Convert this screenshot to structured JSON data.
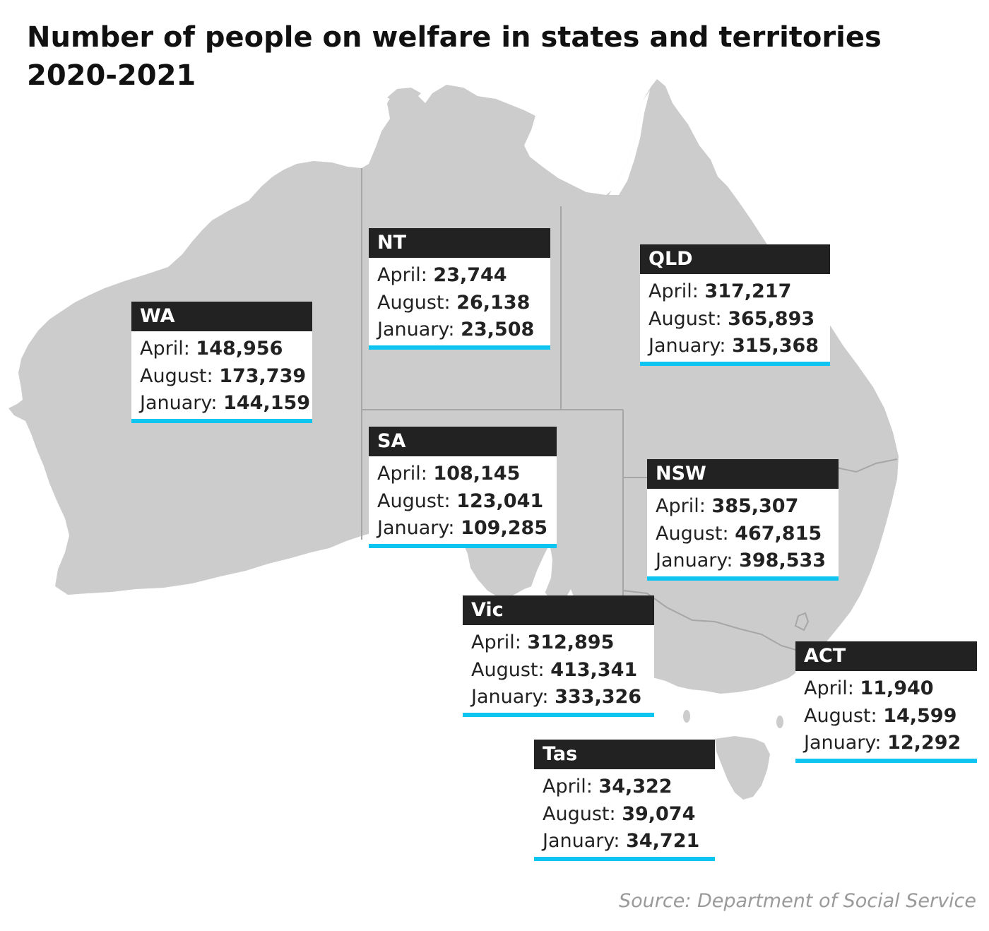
{
  "title_line1": "Number of people on welfare in states and territories",
  "title_line2": "2020-2021",
  "source": "Source: Department of Social Service",
  "colors": {
    "land": "#cccccc",
    "border": "#a6a6a6",
    "label_bg": "#222222",
    "accent": "#0ec5f2"
  },
  "regions": {
    "wa": {
      "name": "WA",
      "rows": [
        {
          "label": "April:",
          "value": "148,956"
        },
        {
          "label": "August:",
          "value": "173,739"
        },
        {
          "label": "January:",
          "value": "144,159"
        }
      ]
    },
    "nt": {
      "name": "NT",
      "rows": [
        {
          "label": "April:",
          "value": "23,744"
        },
        {
          "label": "August:",
          "value": "26,138"
        },
        {
          "label": "January:",
          "value": "23,508"
        }
      ]
    },
    "qld": {
      "name": "QLD",
      "rows": [
        {
          "label": "April:",
          "value": "317,217"
        },
        {
          "label": "August:",
          "value": "365,893"
        },
        {
          "label": "January:",
          "value": "315,368"
        }
      ]
    },
    "sa": {
      "name": "SA",
      "rows": [
        {
          "label": "April:",
          "value": "108,145"
        },
        {
          "label": "August:",
          "value": "123,041"
        },
        {
          "label": "January:",
          "value": "109,285"
        }
      ]
    },
    "nsw": {
      "name": "NSW",
      "rows": [
        {
          "label": "April:",
          "value": "385,307"
        },
        {
          "label": "August:",
          "value": "467,815"
        },
        {
          "label": "January:",
          "value": "398,533"
        }
      ]
    },
    "vic": {
      "name": "Vic",
      "rows": [
        {
          "label": "April:",
          "value": "312,895"
        },
        {
          "label": "August:",
          "value": "413,341"
        },
        {
          "label": "January:",
          "value": "333,326"
        }
      ]
    },
    "act": {
      "name": "ACT",
      "rows": [
        {
          "label": "April:",
          "value": "11,940"
        },
        {
          "label": "August:",
          "value": "14,599"
        },
        {
          "label": "January:",
          "value": "12,292"
        }
      ]
    },
    "tas": {
      "name": "Tas",
      "rows": [
        {
          "label": "April:",
          "value": "34,322"
        },
        {
          "label": "August:",
          "value": "39,074"
        },
        {
          "label": "January:",
          "value": "34,721"
        }
      ]
    }
  }
}
